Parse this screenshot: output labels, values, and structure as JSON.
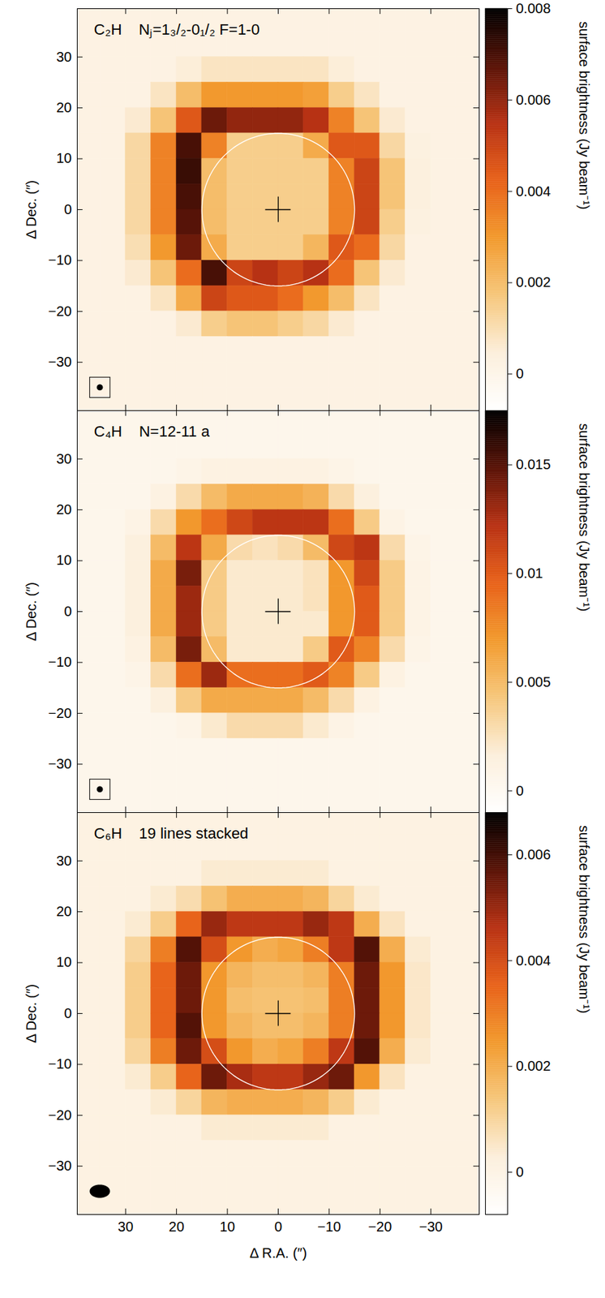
{
  "chart_data": [
    {
      "type": "heatmap",
      "title": "C₂H    Nⱼ=1₃/₂-0₁/₂ F=1-0",
      "ylabel": "Δ Dec. (″)",
      "tick_labels": "y",
      "xlim": [
        39.5,
        -39.5
      ],
      "ylim": [
        -39.5,
        39.5
      ],
      "xticks": [
        30,
        20,
        10,
        0,
        -10,
        -20,
        -30
      ],
      "yticks": [
        -30,
        -20,
        -10,
        0,
        10,
        20,
        30
      ],
      "x": [
        37.5,
        32.5,
        27.5,
        22.5,
        17.5,
        12.5,
        7.5,
        2.5,
        -2.5,
        -7.5,
        -12.5,
        -17.5,
        -22.5,
        -27.5,
        -32.5,
        -37.5
      ],
      "y": [
        37.5,
        32.5,
        27.5,
        22.5,
        17.5,
        12.5,
        7.5,
        2.5,
        -2.5,
        -7.5,
        -12.5,
        -17.5,
        -22.5,
        -27.5,
        -32.5,
        -37.5
      ],
      "values": [
        [
          0.0002,
          0.0002,
          0.0002,
          0.0002,
          0.0002,
          0.0002,
          0.0002,
          0.0002,
          0.0002,
          0.0002,
          0.0002,
          0.0002,
          0.0002,
          0.0002,
          0.0002,
          0.0002
        ],
        [
          0.0002,
          0.0002,
          0.0002,
          0.0002,
          0.0002,
          0.0002,
          0.0002,
          0.0002,
          0.0002,
          0.0002,
          0.0002,
          0.0002,
          0.0002,
          0.0002,
          0.0002,
          0.0002
        ],
        [
          0.0002,
          0.0002,
          0.0002,
          0.0002,
          0.0005,
          0.0008,
          0.0008,
          0.0008,
          0.0008,
          0.0008,
          0.0005,
          0.0002,
          0.0002,
          0.0002,
          0.0002,
          0.0002
        ],
        [
          0.0002,
          0.0002,
          0.0002,
          0.0008,
          0.002,
          0.003,
          0.003,
          0.003,
          0.003,
          0.0028,
          0.0015,
          0.0008,
          0.0002,
          0.0002,
          0.0002,
          0.0002
        ],
        [
          0.0002,
          0.0002,
          0.0006,
          0.0018,
          0.0045,
          0.0065,
          0.006,
          0.006,
          0.006,
          0.0055,
          0.0035,
          0.0018,
          0.0006,
          0.0002,
          0.0002,
          0.0002
        ],
        [
          0.0002,
          0.0002,
          0.0012,
          0.0035,
          0.007,
          0.0035,
          0.0015,
          0.0015,
          0.0015,
          0.0025,
          0.0045,
          0.0045,
          0.0012,
          0.0003,
          0.0002,
          0.0002
        ],
        [
          0.0002,
          0.0002,
          0.0012,
          0.0035,
          0.0072,
          0.002,
          0.0015,
          0.0015,
          0.0015,
          0.0015,
          0.0035,
          0.005,
          0.0018,
          0.0004,
          0.0002,
          0.0002
        ],
        [
          0.0002,
          0.0002,
          0.0012,
          0.0035,
          0.007,
          0.002,
          0.0015,
          0.0015,
          0.0015,
          0.0015,
          0.0035,
          0.005,
          0.0018,
          0.0004,
          0.0002,
          0.0002
        ],
        [
          0.0002,
          0.0002,
          0.0012,
          0.0035,
          0.0068,
          0.002,
          0.0015,
          0.0015,
          0.0015,
          0.0015,
          0.0035,
          0.005,
          0.0015,
          0.0003,
          0.0002,
          0.0002
        ],
        [
          0.0002,
          0.0002,
          0.001,
          0.003,
          0.0065,
          0.0025,
          0.0015,
          0.0015,
          0.0015,
          0.0022,
          0.0045,
          0.004,
          0.0012,
          0.0002,
          0.0002,
          0.0002
        ],
        [
          0.0002,
          0.0002,
          0.0006,
          0.0018,
          0.004,
          0.007,
          0.005,
          0.0055,
          0.005,
          0.0055,
          0.004,
          0.0018,
          0.0006,
          0.0002,
          0.0002,
          0.0002
        ],
        [
          0.0002,
          0.0002,
          0.0002,
          0.0008,
          0.0025,
          0.005,
          0.0045,
          0.0045,
          0.004,
          0.003,
          0.002,
          0.0008,
          0.0002,
          0.0002,
          0.0002,
          0.0002
        ],
        [
          0.0002,
          0.0002,
          0.0002,
          0.0002,
          0.0006,
          0.0015,
          0.0018,
          0.0018,
          0.0015,
          0.0012,
          0.0006,
          0.0002,
          0.0002,
          0.0002,
          0.0002,
          0.0002
        ],
        [
          0.0002,
          0.0002,
          0.0002,
          0.0002,
          0.0002,
          0.0002,
          0.0002,
          0.0002,
          0.0002,
          0.0002,
          0.0002,
          0.0002,
          0.0002,
          0.0002,
          0.0002,
          0.0002
        ],
        [
          0.0002,
          0.0002,
          0.0002,
          0.0002,
          0.0002,
          0.0002,
          0.0002,
          0.0002,
          0.0002,
          0.0002,
          0.0002,
          0.0002,
          0.0002,
          0.0002,
          0.0002,
          0.0002
        ],
        [
          0.0002,
          0.0002,
          0.0002,
          0.0002,
          0.0002,
          0.0002,
          0.0002,
          0.0002,
          0.0002,
          0.0002,
          0.0002,
          0.0002,
          0.0002,
          0.0002,
          0.0002,
          0.0002
        ]
      ],
      "colorbar_lim": [
        -0.0008,
        0.008
      ],
      "colorbar_ticks": [
        0,
        0.002,
        0.004,
        0.006,
        0.008
      ],
      "colorbar_label": "surface brightness (Jy beam⁻¹)",
      "circle": {
        "x": 0,
        "y": 0,
        "radius": 15
      },
      "center_cross": {
        "x": 0,
        "y": 0,
        "half_length": 2.5
      },
      "beam": {
        "x": 35,
        "y": -35,
        "major": 1.2,
        "minor": 1.2
      },
      "beam_box": 4
    },
    {
      "type": "heatmap",
      "title": "C₄H    N=12-11 a",
      "ylabel": "Δ Dec. (″)",
      "tick_labels": "y",
      "xlim": [
        39.5,
        -39.5
      ],
      "ylim": [
        -39.5,
        39.5
      ],
      "xticks": [
        30,
        20,
        10,
        0,
        -10,
        -20,
        -30
      ],
      "yticks": [
        -30,
        -20,
        -10,
        0,
        10,
        20,
        30
      ],
      "x": [
        37.5,
        32.5,
        27.5,
        22.5,
        17.5,
        12.5,
        7.5,
        2.5,
        -2.5,
        -7.5,
        -12.5,
        -17.5,
        -22.5,
        -27.5,
        -32.5,
        -37.5
      ],
      "y": [
        37.5,
        32.5,
        27.5,
        22.5,
        17.5,
        12.5,
        7.5,
        2.5,
        -2.5,
        -7.5,
        -12.5,
        -17.5,
        -22.5,
        -27.5,
        -32.5,
        -37.5
      ],
      "values": [
        [
          0.0005,
          0.0005,
          0.0005,
          0.0005,
          0.0005,
          0.0005,
          0.0005,
          0.0005,
          0.0005,
          0.0005,
          0.0005,
          0.0005,
          0.0005,
          0.0005,
          0.0005,
          0.0005
        ],
        [
          0.0005,
          0.0005,
          0.0005,
          0.0005,
          0.0005,
          0.0005,
          0.0005,
          0.0005,
          0.0005,
          0.0005,
          0.0005,
          0.0005,
          0.0005,
          0.0005,
          0.0005,
          0.0005
        ],
        [
          0.0005,
          0.0005,
          0.0005,
          0.0005,
          0.0008,
          0.0012,
          0.0012,
          0.0012,
          0.0012,
          0.0012,
          0.0008,
          0.0005,
          0.0005,
          0.0005,
          0.0005,
          0.0005
        ],
        [
          0.0005,
          0.0005,
          0.0005,
          0.0012,
          0.003,
          0.005,
          0.006,
          0.006,
          0.006,
          0.0055,
          0.003,
          0.0015,
          0.0005,
          0.0005,
          0.0005,
          0.0005
        ],
        [
          0.0005,
          0.0005,
          0.001,
          0.003,
          0.007,
          0.009,
          0.011,
          0.012,
          0.012,
          0.012,
          0.009,
          0.004,
          0.001,
          0.0005,
          0.0005,
          0.0005
        ],
        [
          0.0005,
          0.0005,
          0.0015,
          0.005,
          0.012,
          0.006,
          0.003,
          0.0025,
          0.003,
          0.005,
          0.011,
          0.012,
          0.003,
          0.0008,
          0.0005,
          0.0005
        ],
        [
          0.0005,
          0.0005,
          0.0015,
          0.006,
          0.014,
          0.004,
          0.002,
          0.002,
          0.002,
          0.0025,
          0.007,
          0.011,
          0.004,
          0.001,
          0.0005,
          0.0005
        ],
        [
          0.0005,
          0.0005,
          0.0015,
          0.006,
          0.013,
          0.004,
          0.002,
          0.002,
          0.002,
          0.0025,
          0.007,
          0.01,
          0.004,
          0.001,
          0.0005,
          0.0005
        ],
        [
          0.0005,
          0.0005,
          0.0015,
          0.006,
          0.013,
          0.004,
          0.002,
          0.002,
          0.002,
          0.002,
          0.007,
          0.01,
          0.004,
          0.001,
          0.0005,
          0.0005
        ],
        [
          0.0005,
          0.0005,
          0.0012,
          0.005,
          0.014,
          0.005,
          0.002,
          0.002,
          0.002,
          0.004,
          0.01,
          0.008,
          0.003,
          0.0008,
          0.0005,
          0.0005
        ],
        [
          0.0005,
          0.0005,
          0.0008,
          0.003,
          0.009,
          0.013,
          0.009,
          0.009,
          0.009,
          0.01,
          0.008,
          0.004,
          0.0012,
          0.0005,
          0.0005,
          0.0005
        ],
        [
          0.0005,
          0.0005,
          0.0005,
          0.0015,
          0.004,
          0.006,
          0.006,
          0.006,
          0.006,
          0.005,
          0.003,
          0.0012,
          0.0005,
          0.0005,
          0.0005,
          0.0005
        ],
        [
          0.0005,
          0.0005,
          0.0005,
          0.0005,
          0.0008,
          0.002,
          0.003,
          0.003,
          0.003,
          0.002,
          0.001,
          0.0005,
          0.0005,
          0.0005,
          0.0005,
          0.0005
        ],
        [
          0.0005,
          0.0005,
          0.0005,
          0.0005,
          0.0005,
          0.0005,
          0.0005,
          0.0005,
          0.0005,
          0.0005,
          0.0005,
          0.0005,
          0.0005,
          0.0005,
          0.0005,
          0.0005
        ],
        [
          0.0005,
          0.0005,
          0.0005,
          0.0005,
          0.0005,
          0.0005,
          0.0005,
          0.0005,
          0.0005,
          0.0005,
          0.0005,
          0.0005,
          0.0005,
          0.0005,
          0.0005,
          0.0005
        ],
        [
          0.0005,
          0.0005,
          0.0005,
          0.0005,
          0.0005,
          0.0005,
          0.0005,
          0.0005,
          0.0005,
          0.0005,
          0.0005,
          0.0005,
          0.0005,
          0.0005,
          0.0005,
          0.0005
        ]
      ],
      "colorbar_lim": [
        -0.001,
        0.0175
      ],
      "colorbar_ticks": [
        0,
        0.005,
        0.01,
        0.015
      ],
      "colorbar_label": "surface brightness (Jy beam⁻¹)",
      "circle": {
        "x": 0,
        "y": 0,
        "radius": 15
      },
      "center_cross": {
        "x": 0,
        "y": 0,
        "half_length": 2.5
      },
      "beam": {
        "x": 35,
        "y": -35,
        "major": 1.2,
        "minor": 1.2
      },
      "beam_box": 4
    },
    {
      "type": "heatmap",
      "title": "C₆H    19 lines stacked",
      "xlabel": "Δ R.A. (″)",
      "ylabel": "Δ Dec. (″)",
      "xlim": [
        39.5,
        -39.5
      ],
      "ylim": [
        -39.5,
        39.5
      ],
      "xticks": [
        30,
        20,
        10,
        0,
        -10,
        -20,
        -30
      ],
      "yticks": [
        -30,
        -20,
        -10,
        0,
        10,
        20,
        30
      ],
      "x": [
        37.5,
        32.5,
        27.5,
        22.5,
        17.5,
        12.5,
        7.5,
        2.5,
        -2.5,
        -7.5,
        -12.5,
        -17.5,
        -22.5,
        -27.5,
        -32.5,
        -37.5
      ],
      "y": [
        37.5,
        32.5,
        27.5,
        22.5,
        17.5,
        12.5,
        7.5,
        2.5,
        -2.5,
        -7.5,
        -12.5,
        -17.5,
        -22.5,
        -27.5,
        -32.5,
        -37.5
      ],
      "values": [
        [
          0.0001,
          0.0001,
          0.0001,
          0.0001,
          0.0001,
          0.0001,
          0.0001,
          0.0001,
          0.0001,
          0.0001,
          0.0001,
          0.0001,
          0.0001,
          0.0001,
          0.0001,
          0.0001
        ],
        [
          0.0001,
          0.0001,
          0.0001,
          0.0001,
          0.0001,
          0.0001,
          0.0001,
          0.0001,
          0.0001,
          0.0001,
          0.0001,
          0.0001,
          0.0001,
          0.0001,
          0.0001,
          0.0001
        ],
        [
          0.0001,
          0.0001,
          0.0001,
          0.0001,
          0.0001,
          0.0004,
          0.0004,
          0.0004,
          0.0004,
          0.0004,
          0.0001,
          0.0001,
          0.0001,
          0.0001,
          0.0001,
          0.0001
        ],
        [
          0.0001,
          0.0001,
          0.0001,
          0.0004,
          0.0008,
          0.0015,
          0.002,
          0.002,
          0.002,
          0.0018,
          0.001,
          0.0004,
          0.0001,
          0.0001,
          0.0001,
          0.0001
        ],
        [
          0.0001,
          0.0001,
          0.0004,
          0.0012,
          0.0035,
          0.005,
          0.0045,
          0.0045,
          0.0045,
          0.005,
          0.0045,
          0.002,
          0.0006,
          0.0001,
          0.0001,
          0.0001
        ],
        [
          0.0001,
          0.0001,
          0.001,
          0.003,
          0.0058,
          0.004,
          0.0025,
          0.002,
          0.0022,
          0.003,
          0.0045,
          0.0058,
          0.002,
          0.0004,
          0.0001,
          0.0001
        ],
        [
          0.0001,
          0.0001,
          0.0012,
          0.0035,
          0.0055,
          0.0025,
          0.0018,
          0.0016,
          0.0016,
          0.0018,
          0.003,
          0.0055,
          0.0025,
          0.0005,
          0.0001,
          0.0001
        ],
        [
          0.0001,
          0.0001,
          0.0012,
          0.0035,
          0.0055,
          0.0025,
          0.0016,
          0.0015,
          0.0015,
          0.0016,
          0.003,
          0.0055,
          0.0025,
          0.0005,
          0.0001,
          0.0001
        ],
        [
          0.0001,
          0.0001,
          0.0012,
          0.0035,
          0.0058,
          0.0025,
          0.0018,
          0.0016,
          0.0016,
          0.0018,
          0.003,
          0.0055,
          0.0025,
          0.0005,
          0.0001,
          0.0001
        ],
        [
          0.0001,
          0.0001,
          0.001,
          0.003,
          0.0055,
          0.004,
          0.0025,
          0.002,
          0.0022,
          0.003,
          0.0045,
          0.0058,
          0.002,
          0.0004,
          0.0001,
          0.0001
        ],
        [
          0.0001,
          0.0001,
          0.0004,
          0.0012,
          0.0035,
          0.0055,
          0.0048,
          0.0045,
          0.0045,
          0.005,
          0.0055,
          0.0025,
          0.0006,
          0.0001,
          0.0001,
          0.0001
        ],
        [
          0.0001,
          0.0001,
          0.0001,
          0.0004,
          0.001,
          0.0018,
          0.002,
          0.002,
          0.002,
          0.0018,
          0.0012,
          0.0004,
          0.0001,
          0.0001,
          0.0001,
          0.0001
        ],
        [
          0.0001,
          0.0001,
          0.0001,
          0.0001,
          0.0001,
          0.0004,
          0.0004,
          0.0004,
          0.0004,
          0.0004,
          0.0001,
          0.0001,
          0.0001,
          0.0001,
          0.0001,
          0.0001
        ],
        [
          0.0001,
          0.0001,
          0.0001,
          0.0001,
          0.0001,
          0.0001,
          0.0001,
          0.0001,
          0.0001,
          0.0001,
          0.0001,
          0.0001,
          0.0001,
          0.0001,
          0.0001,
          0.0001
        ],
        [
          0.0001,
          0.0001,
          0.0001,
          0.0001,
          0.0001,
          0.0001,
          0.0001,
          0.0001,
          0.0001,
          0.0001,
          0.0001,
          0.0001,
          0.0001,
          0.0001,
          0.0001,
          0.0001
        ],
        [
          0.0001,
          0.0001,
          0.0001,
          0.0001,
          0.0001,
          0.0001,
          0.0001,
          0.0001,
          0.0001,
          0.0001,
          0.0001,
          0.0001,
          0.0001,
          0.0001,
          0.0001,
          0.0001
        ]
      ],
      "colorbar_lim": [
        -0.0008,
        0.0068
      ],
      "colorbar_ticks": [
        0,
        0.002,
        0.004,
        0.006
      ],
      "colorbar_label": "surface brightness (Jy beam⁻¹)",
      "circle": {
        "x": 0,
        "y": 0,
        "radius": 15
      },
      "center_cross": {
        "x": 0,
        "y": 0,
        "half_length": 2.5
      },
      "beam": {
        "x": 35,
        "y": -35,
        "major": 4,
        "minor": 2.6
      }
    }
  ]
}
